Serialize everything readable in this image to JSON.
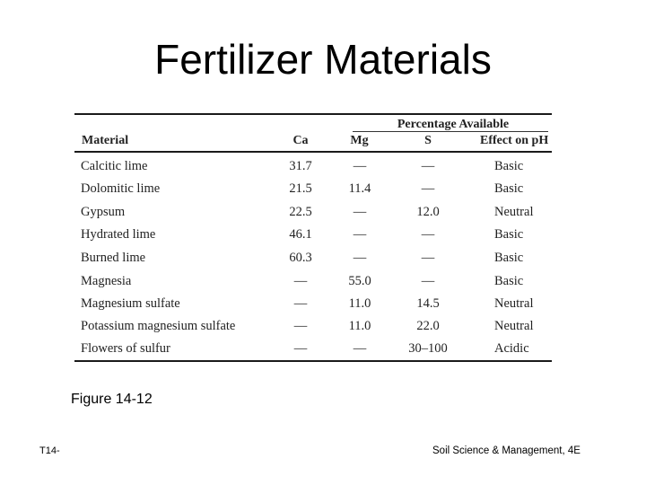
{
  "slide": {
    "title": "Fertilizer Materials",
    "figure_caption": "Figure 14-12",
    "footer_left": "T14-",
    "footer_right": "Soil Science & Management, 4E"
  },
  "table": {
    "group_header": "Percentage Available",
    "columns": {
      "material": "Material",
      "ca": "Ca",
      "mg": "Mg",
      "s": "S",
      "effect": "Effect on pH"
    },
    "rows": [
      {
        "material": "Calcitic lime",
        "ca": "31.7",
        "mg": "—",
        "s": "—",
        "effect": "Basic"
      },
      {
        "material": "Dolomitic lime",
        "ca": "21.5",
        "mg": "11.4",
        "s": "—",
        "effect": "Basic"
      },
      {
        "material": "Gypsum",
        "ca": "22.5",
        "mg": "—",
        "s": "12.0",
        "effect": "Neutral"
      },
      {
        "material": "Hydrated lime",
        "ca": "46.1",
        "mg": "—",
        "s": "—",
        "effect": "Basic"
      },
      {
        "material": "Burned lime",
        "ca": "60.3",
        "mg": "—",
        "s": "—",
        "effect": "Basic"
      },
      {
        "material": "Magnesia",
        "ca": "—",
        "mg": "55.0",
        "s": "—",
        "effect": "Basic"
      },
      {
        "material": "Magnesium sulfate",
        "ca": "—",
        "mg": "11.0",
        "s": "14.5",
        "effect": "Neutral"
      },
      {
        "material": "Potassium magnesium sulfate",
        "ca": "—",
        "mg": "11.0",
        "s": "22.0",
        "effect": "Neutral"
      },
      {
        "material": "Flowers of sulfur",
        "ca": "—",
        "mg": "—",
        "s": "30–100",
        "effect": "Acidic"
      }
    ]
  }
}
